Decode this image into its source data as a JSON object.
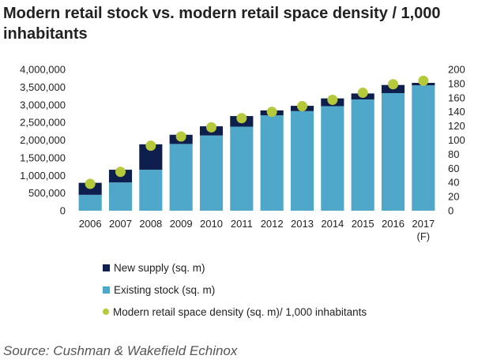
{
  "title": "Modern retail stock vs. modern retail space density / 1,000 inhabitants",
  "source": "Source: Cushman & Wakefield Echinox",
  "colors": {
    "new_supply": "#0f1f4d",
    "existing_stock": "#4fa8c9",
    "density": "#b5c93a",
    "axis_text": "#222222"
  },
  "chart_data": {
    "type": "bar",
    "stacked": true,
    "categories": [
      "2006",
      "2007",
      "2008",
      "2009",
      "2010",
      "2011",
      "2012",
      "2013",
      "2014",
      "2015",
      "2016",
      "2017"
    ],
    "category_sublabels": [
      "",
      "",
      "",
      "",
      "",
      "",
      "",
      "",
      "",
      "",
      "",
      "(F)"
    ],
    "series": [
      {
        "name": "Existing stock (sq. m)",
        "axis": "left",
        "values": [
          450000,
          800000,
          1160000,
          1890000,
          2130000,
          2380000,
          2700000,
          2820000,
          2960000,
          3150000,
          3330000,
          3550000
        ]
      },
      {
        "name": "New supply (sq. m)",
        "axis": "left",
        "values": [
          340000,
          360000,
          720000,
          260000,
          260000,
          300000,
          140000,
          150000,
          220000,
          170000,
          230000,
          70000
        ]
      },
      {
        "name": "Modern retail space density (sq. m)/ 1,000 inhabitants",
        "axis": "right",
        "type": "scatter",
        "values": [
          38,
          55,
          92,
          105,
          118,
          131,
          140,
          148,
          157,
          167,
          179,
          184
        ]
      }
    ],
    "y_left": {
      "min": 0,
      "max": 4000000,
      "ticks": [
        0,
        500000,
        1000000,
        1500000,
        2000000,
        2500000,
        3000000,
        3500000,
        4000000
      ],
      "tick_labels": [
        "0",
        "500,000",
        "1,000,000",
        "1,500,000",
        "2,000,000",
        "2,500,000",
        "3,000,000",
        "3,500,000",
        "4,000,000"
      ]
    },
    "y_right": {
      "min": 0,
      "max": 200,
      "ticks": [
        0,
        20,
        40,
        60,
        80,
        100,
        120,
        140,
        160,
        180,
        200
      ],
      "tick_labels": [
        "0",
        "20",
        "40",
        "60",
        "80",
        "100",
        "120",
        "140",
        "160",
        "180",
        "200"
      ]
    },
    "grid": false,
    "legend_position": "bottom"
  },
  "legend": [
    {
      "label": "New supply (sq. m)",
      "shape": "square",
      "color_key": "new_supply"
    },
    {
      "label": "Existing stock (sq. m)",
      "shape": "square",
      "color_key": "existing_stock"
    },
    {
      "label": "Modern retail space density (sq. m)/ 1,000 inhabitants",
      "shape": "dot",
      "color_key": "density"
    }
  ]
}
